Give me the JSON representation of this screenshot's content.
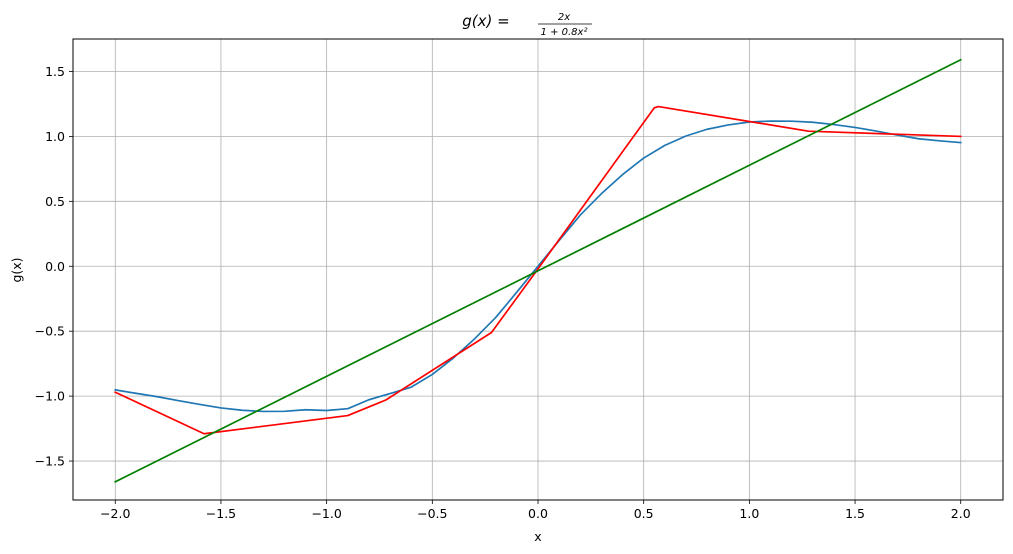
{
  "chart_data": {
    "type": "line",
    "title": {
      "lhs": "g(x) = ",
      "numerator": "2x",
      "denominator": "1 + 0.8x²"
    },
    "xlabel": "x",
    "ylabel": "g(x)",
    "xlim": [
      -2.2,
      2.2
    ],
    "ylim": [
      -1.8,
      1.75
    ],
    "x_ticks": [
      -2.0,
      -1.5,
      -1.0,
      -0.5,
      0.0,
      0.5,
      1.0,
      1.5,
      2.0
    ],
    "x_tick_labels": [
      "−2.0",
      "−1.5",
      "−1.0",
      "−0.5",
      "0.0",
      "0.5",
      "1.0",
      "1.5",
      "2.0"
    ],
    "y_ticks": [
      -1.5,
      -1.0,
      -0.5,
      0.0,
      0.5,
      1.0,
      1.5
    ],
    "y_tick_labels": [
      "−1.5",
      "−1.0",
      "−0.5",
      "0.0",
      "0.5",
      "1.0",
      "1.5"
    ],
    "grid": true,
    "series": [
      {
        "color": "#1f77b4",
        "x": [
          -2.0,
          -1.9,
          -1.8,
          -1.7,
          -1.6,
          -1.5,
          -1.4,
          -1.3,
          -1.2,
          -1.1,
          -1.0,
          -0.9,
          -0.8,
          -0.7,
          -0.6,
          -0.5,
          -0.4,
          -0.3,
          -0.2,
          -0.1,
          0.0,
          0.1,
          0.2,
          0.3,
          0.4,
          0.5,
          0.6,
          0.7,
          0.8,
          0.9,
          1.0,
          1.1,
          1.2,
          1.3,
          1.4,
          1.5,
          1.6,
          1.7,
          1.8,
          1.9,
          2.0
        ],
        "y": [
          -0.952,
          -0.979,
          -1.005,
          -1.035,
          -1.064,
          -1.091,
          -1.109,
          -1.118,
          -1.117,
          -1.105,
          -1.111,
          -1.097,
          -1.028,
          -0.98,
          -0.931,
          -0.833,
          -0.706,
          -0.559,
          -0.394,
          -0.199,
          0.0,
          0.199,
          0.394,
          0.559,
          0.706,
          0.833,
          0.931,
          1.003,
          1.055,
          1.088,
          1.111,
          1.118,
          1.117,
          1.109,
          1.091,
          1.069,
          1.041,
          1.01,
          0.982,
          0.966,
          0.952
        ]
      },
      {
        "color": "#ff0000",
        "x": [
          -2.0,
          -1.58,
          -0.9,
          -0.72,
          -0.22,
          0.0,
          0.55,
          0.57,
          1.28,
          2.0
        ],
        "y": [
          -0.97,
          -1.29,
          -1.15,
          -1.03,
          -0.51,
          -0.02,
          1.22,
          1.23,
          1.04,
          1.0
        ]
      },
      {
        "color": "#008000",
        "x": [
          -2.0,
          2.0
        ],
        "y": [
          -1.66,
          1.59
        ]
      }
    ]
  }
}
